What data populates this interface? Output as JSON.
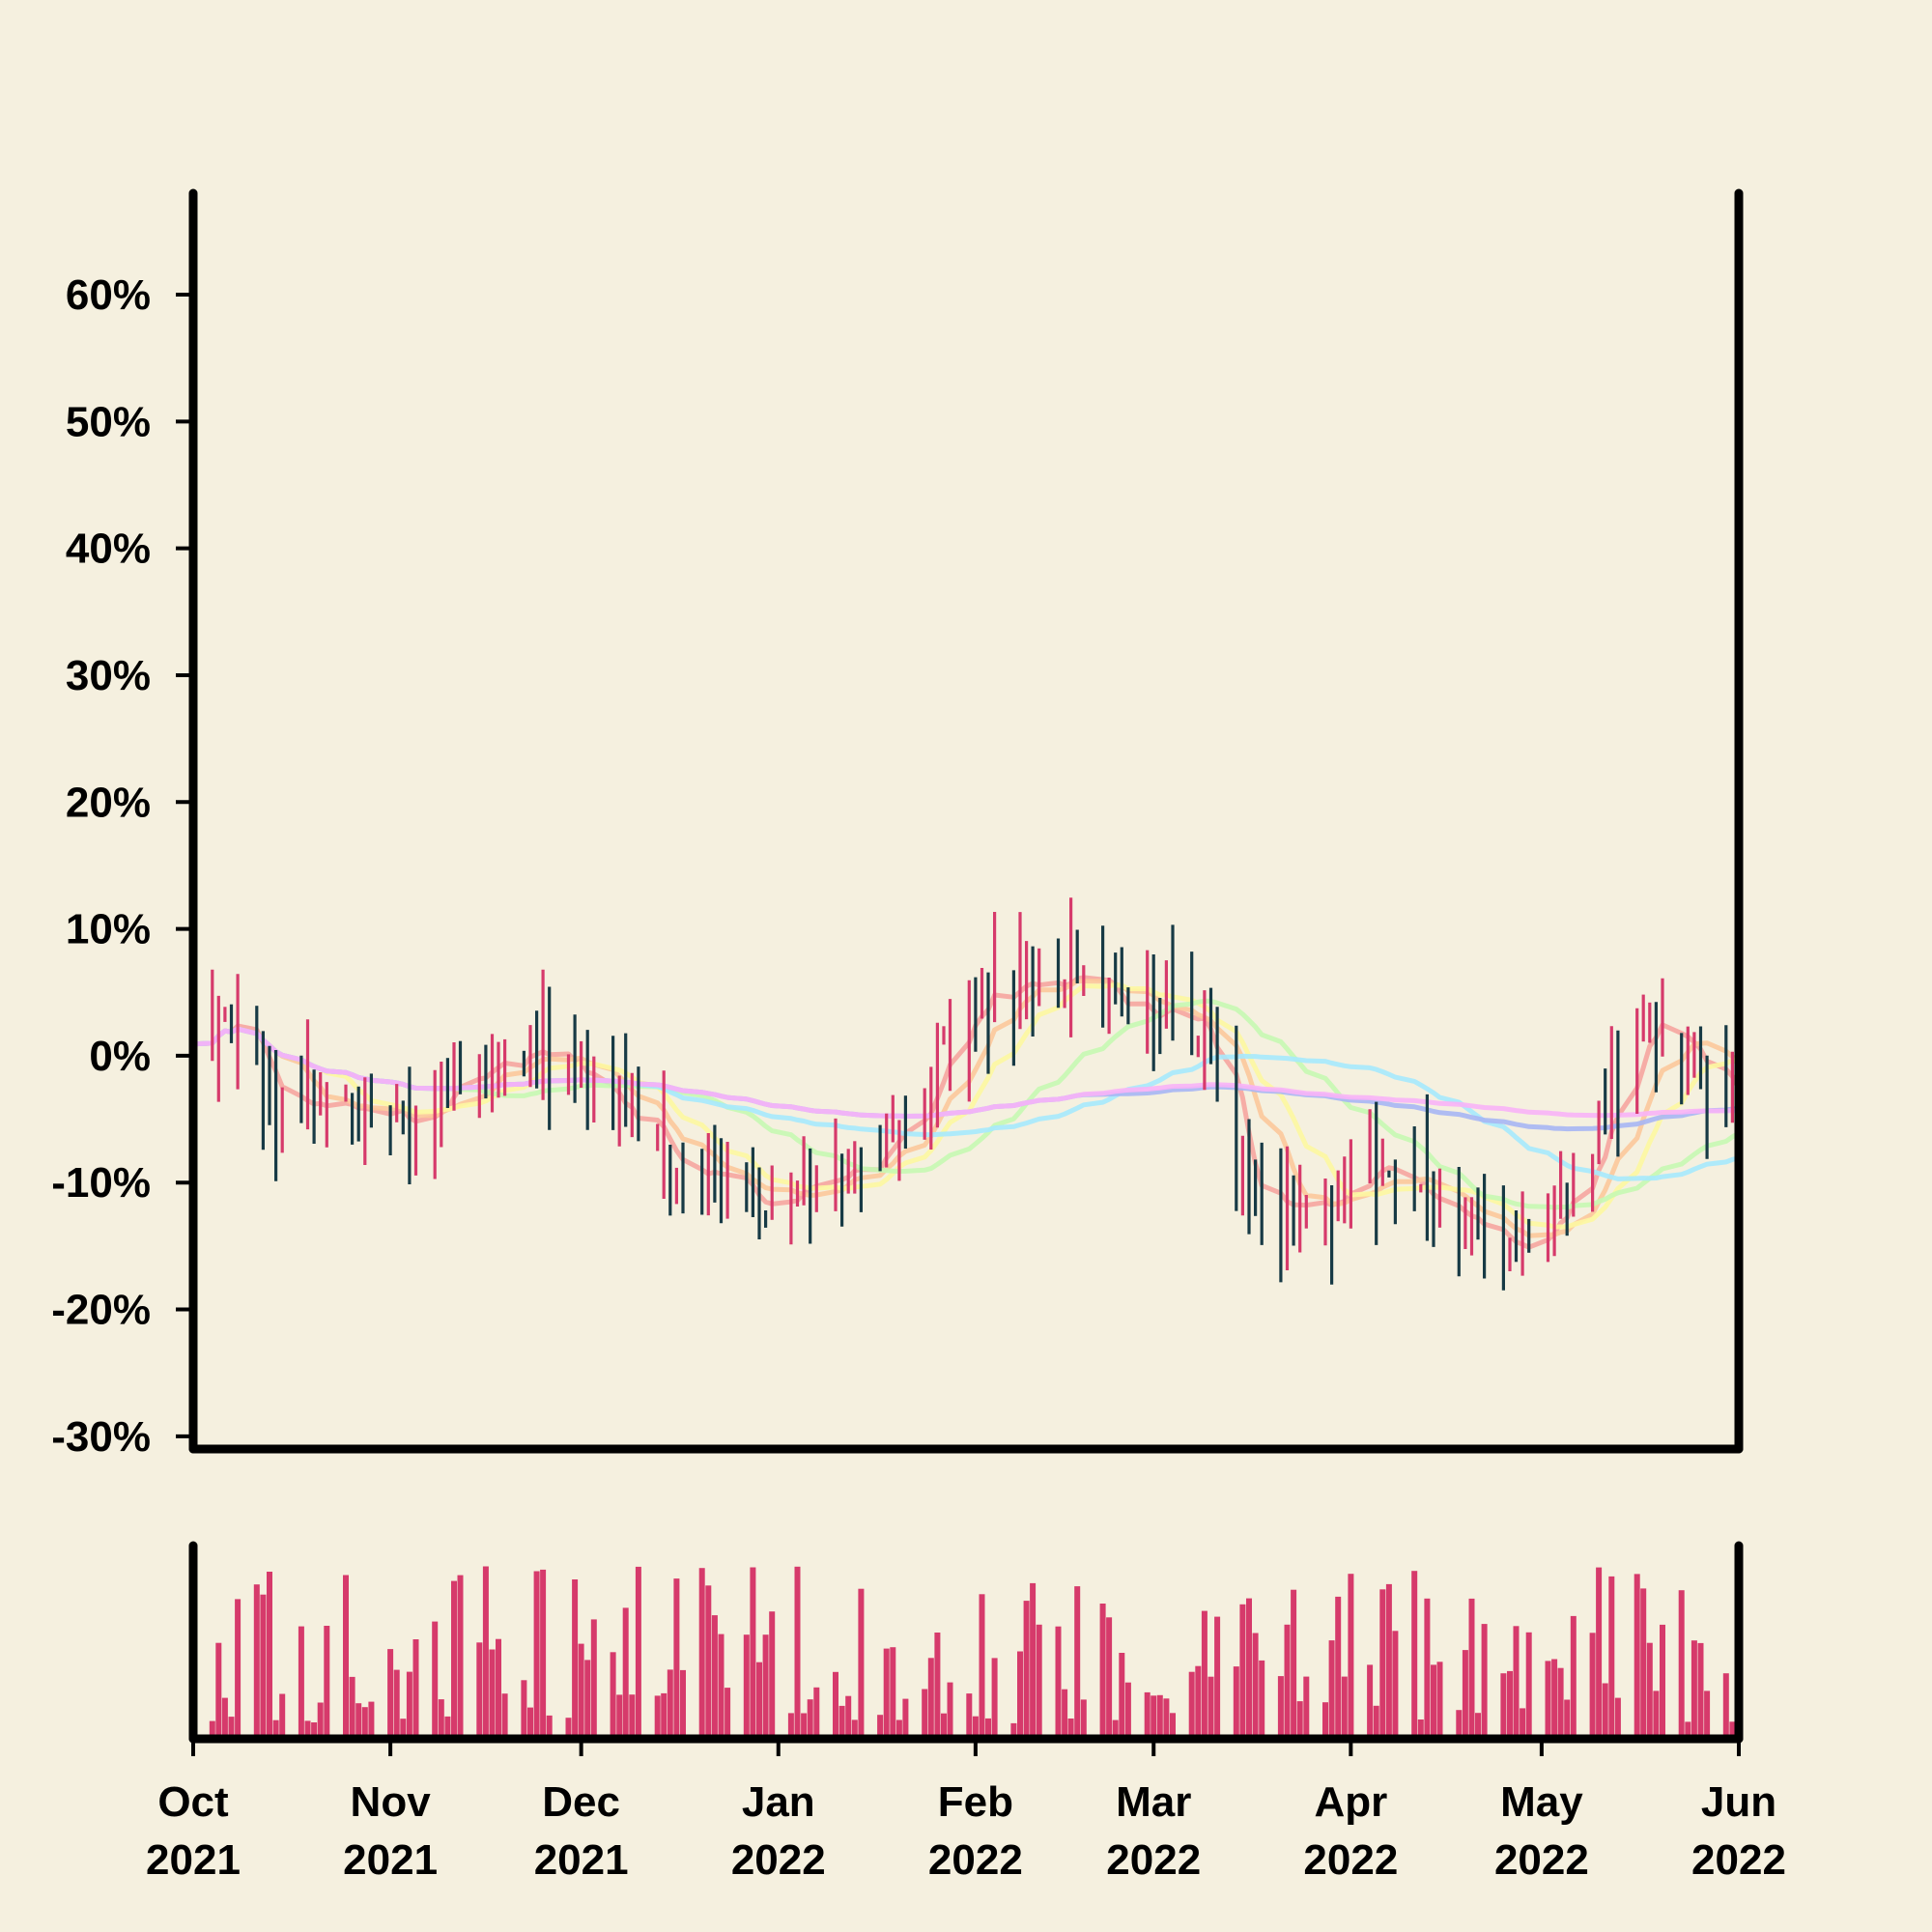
{
  "chart_data": [
    {
      "panel": "price",
      "type": "ohlc",
      "title": "",
      "xlabel": "",
      "ylabel": "",
      "ylim": [
        -31,
        68
      ],
      "yticks": [
        -30,
        -20,
        -10,
        0,
        10,
        20,
        30,
        40,
        50,
        60
      ],
      "ytick_labels": [
        "-30%",
        "-20%",
        "-10%",
        "0%",
        "10%",
        "20%",
        "30%",
        "40%",
        "50%",
        "60%"
      ],
      "xrange": [
        "2021-10-01",
        "2022-06-01"
      ],
      "grid": false,
      "legend": "none",
      "colors": {
        "up": "#D63A6B",
        "down": "#173A45",
        "background": "#F5F0DF",
        "axes": "#000000"
      },
      "bars_per_day": "trading days (Mon–Fri)",
      "close_path": [
        {
          "date": "2021-10-01",
          "value": 1
        },
        {
          "date": "2021-10-07",
          "value": 3
        },
        {
          "date": "2021-10-13",
          "value": -3
        },
        {
          "date": "2021-10-20",
          "value": -4
        },
        {
          "date": "2021-10-28",
          "value": -4
        },
        {
          "date": "2021-11-05",
          "value": -6
        },
        {
          "date": "2021-11-12",
          "value": -2
        },
        {
          "date": "2021-11-19",
          "value": -1
        },
        {
          "date": "2021-11-24",
          "value": 1
        },
        {
          "date": "2021-12-01",
          "value": -2
        },
        {
          "date": "2021-12-08",
          "value": -6
        },
        {
          "date": "2021-12-15",
          "value": -8
        },
        {
          "date": "2021-12-22",
          "value": -10
        },
        {
          "date": "2021-12-29",
          "value": -12
        },
        {
          "date": "2022-01-06",
          "value": -11
        },
        {
          "date": "2022-01-13",
          "value": -9
        },
        {
          "date": "2022-01-20",
          "value": -6
        },
        {
          "date": "2022-01-27",
          "value": 0
        },
        {
          "date": "2022-02-01",
          "value": 5
        },
        {
          "date": "2022-02-08",
          "value": 6
        },
        {
          "date": "2022-02-14",
          "value": 5
        },
        {
          "date": "2022-02-18",
          "value": 6
        },
        {
          "date": "2022-02-25",
          "value": 3
        },
        {
          "date": "2022-03-04",
          "value": 4
        },
        {
          "date": "2022-03-09",
          "value": 2
        },
        {
          "date": "2022-03-14",
          "value": -9
        },
        {
          "date": "2022-03-22",
          "value": -12
        },
        {
          "date": "2022-03-28",
          "value": -11
        },
        {
          "date": "2022-04-04",
          "value": -9
        },
        {
          "date": "2022-04-12",
          "value": -10
        },
        {
          "date": "2022-04-19",
          "value": -14
        },
        {
          "date": "2022-04-26",
          "value": -16
        },
        {
          "date": "2022-05-03",
          "value": -13
        },
        {
          "date": "2022-05-10",
          "value": -6
        },
        {
          "date": "2022-05-17",
          "value": 3
        },
        {
          "date": "2022-05-23",
          "value": 1
        },
        {
          "date": "2022-06-01",
          "value": -3
        }
      ],
      "moving_averages": [
        {
          "window": 5,
          "color": "#F6A5A0"
        },
        {
          "window": 10,
          "color": "#FCC89B"
        },
        {
          "window": 15,
          "color": "#FDF7A1"
        },
        {
          "window": 30,
          "color": "#C6F8B2"
        },
        {
          "window": 50,
          "color": "#A6E9FD"
        },
        {
          "window": 100,
          "color": "#A7B6F4"
        },
        {
          "window": 200,
          "color": "#F8B3F7"
        }
      ]
    },
    {
      "panel": "volume",
      "type": "bar",
      "color": "#D63A6B",
      "ylim": [
        0,
        1
      ],
      "note_values": "relative daily volume, one bar per trading day",
      "xtick_labels": [
        [
          "Oct",
          "2021"
        ],
        [
          "Nov",
          "2021"
        ],
        [
          "Dec",
          "2021"
        ],
        [
          "Jan",
          "2022"
        ],
        [
          "Feb",
          "2022"
        ],
        [
          "Mar",
          "2022"
        ],
        [
          "Apr",
          "2022"
        ],
        [
          "May",
          "2022"
        ],
        [
          "Jun",
          "2022"
        ]
      ],
      "xtick_dates": [
        "2021-10-01",
        "2021-11-01",
        "2021-12-01",
        "2022-01-01",
        "2022-02-01",
        "2022-03-01",
        "2022-04-01",
        "2022-05-01",
        "2022-06-01"
      ]
    }
  ]
}
